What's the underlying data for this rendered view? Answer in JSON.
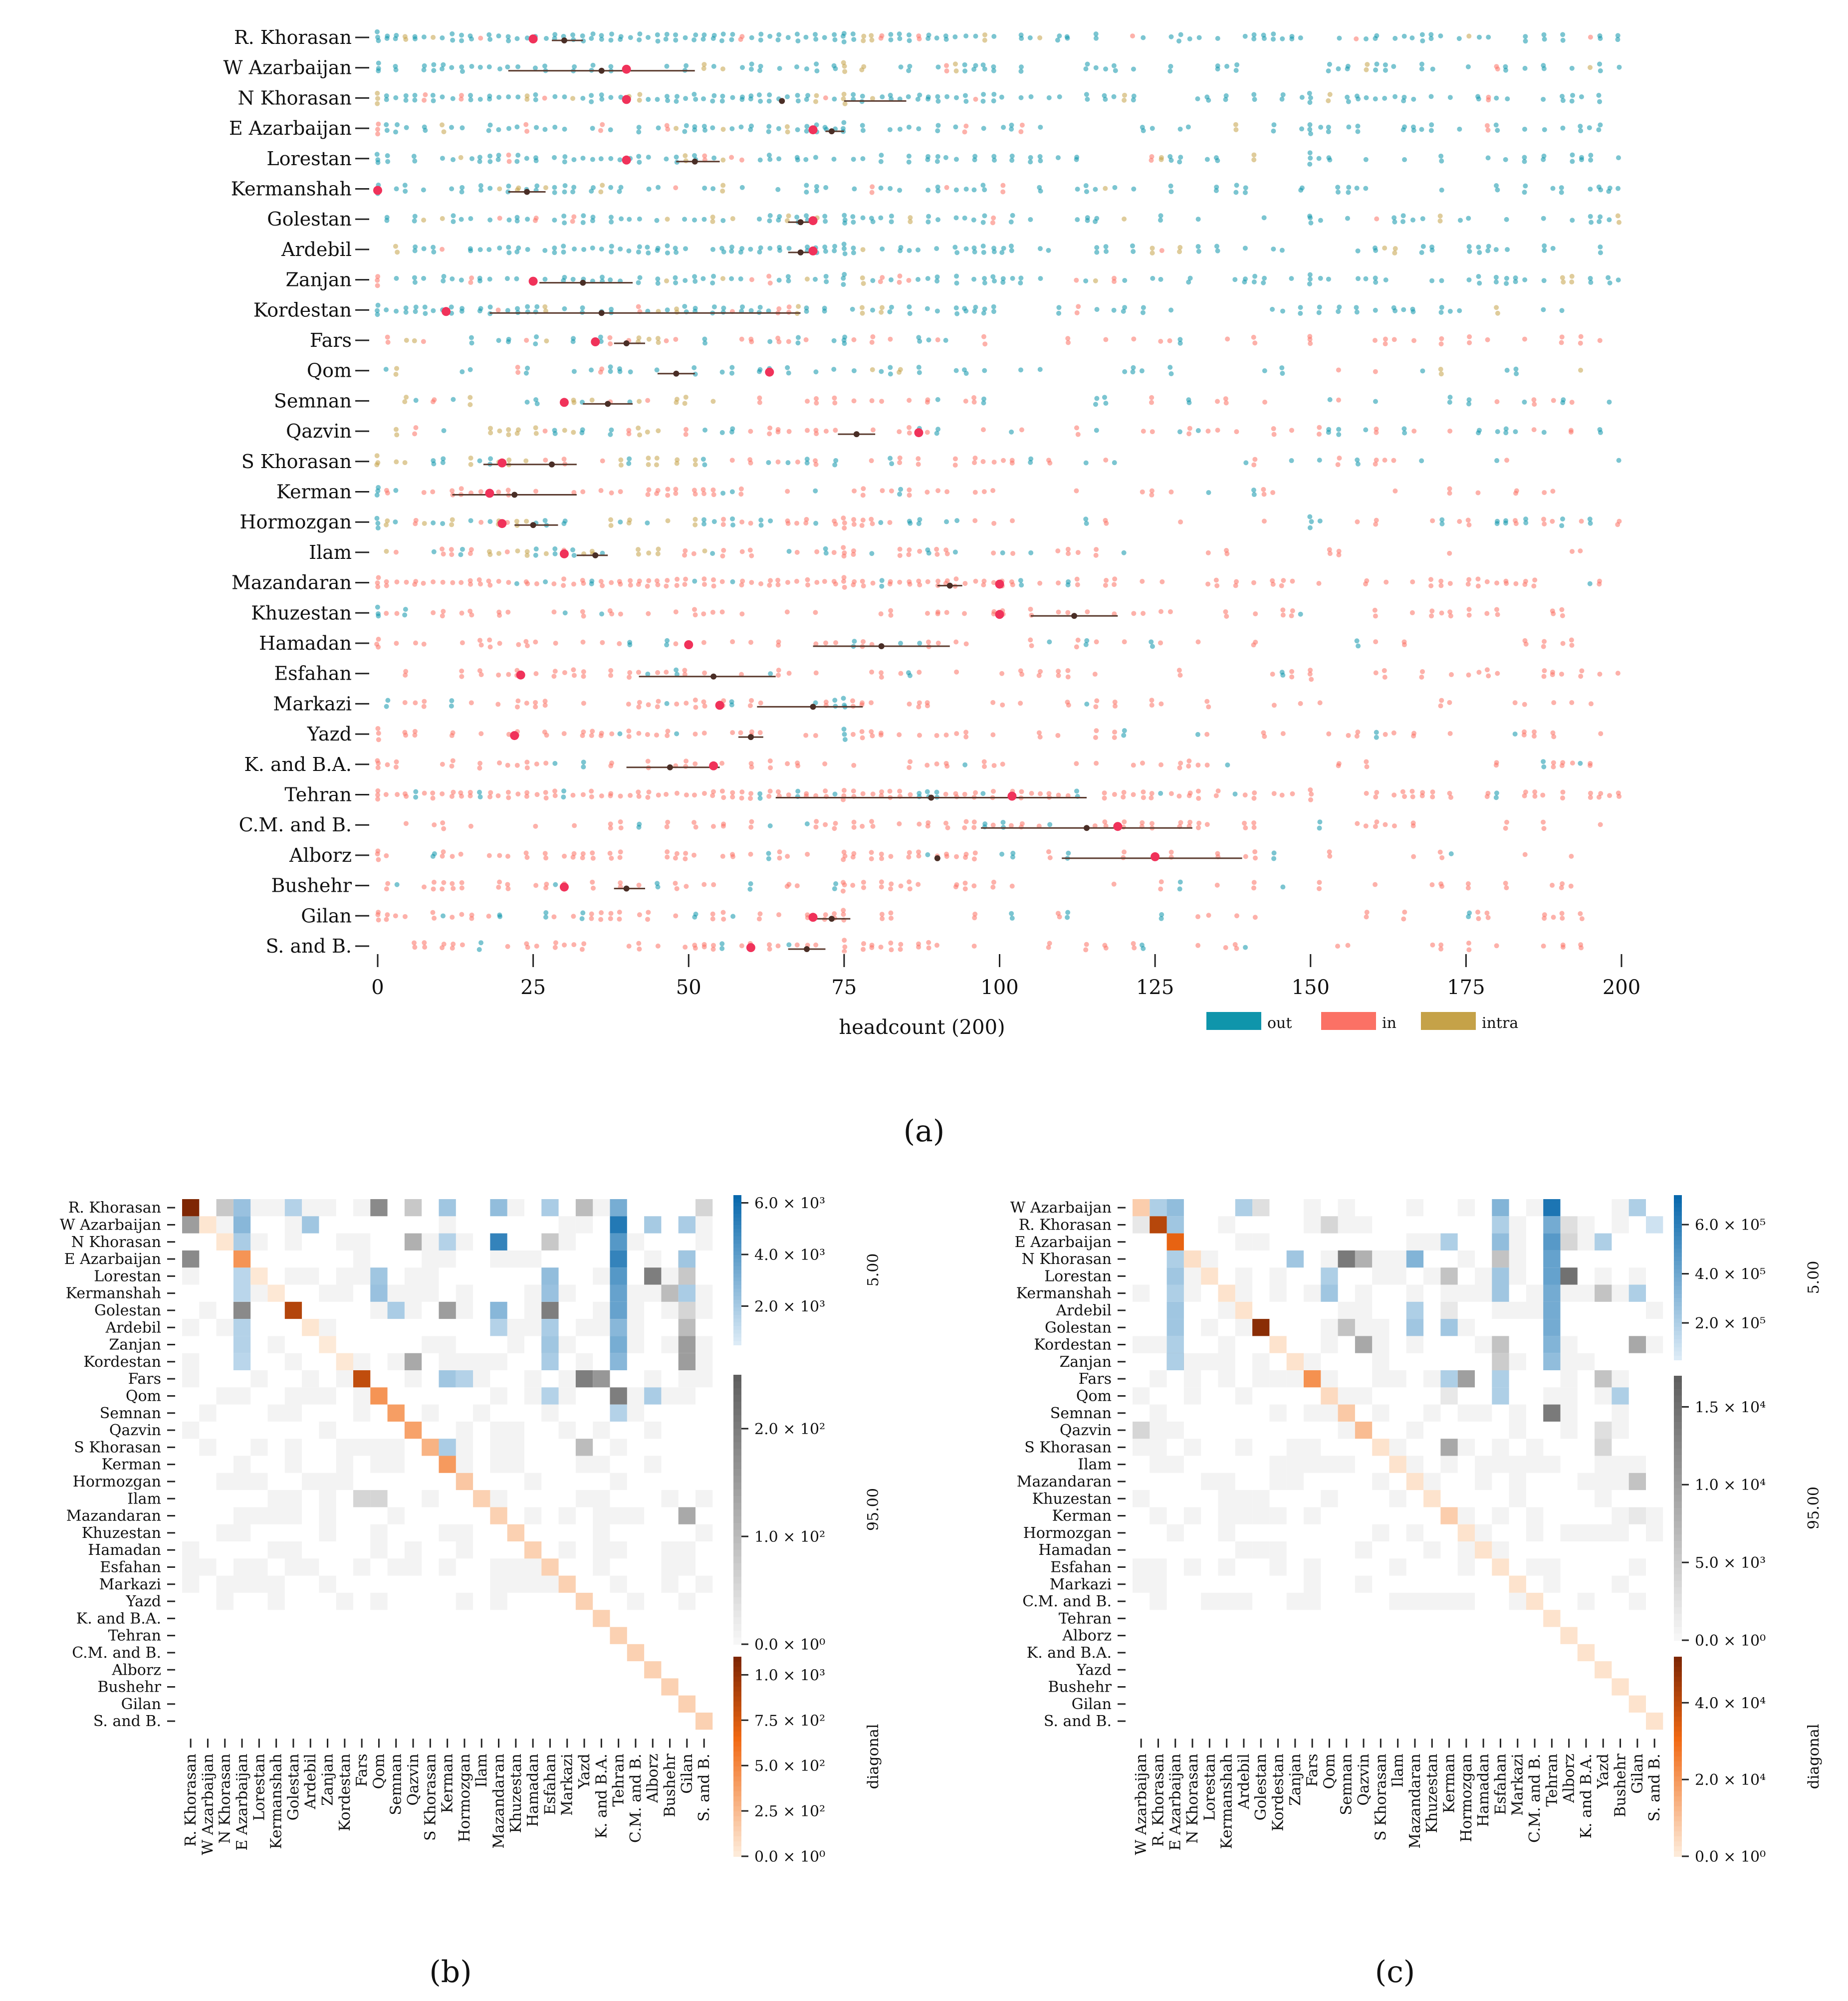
{
  "chart_data": [
    {
      "id": "a",
      "type": "scatter",
      "caption": "(a)",
      "xlabel": "headcount (200)",
      "ylabel": "",
      "xlim": [
        0,
        200
      ],
      "xticks": [
        "0",
        "25",
        "50",
        "75",
        "100",
        "125",
        "150",
        "175",
        "200"
      ],
      "legend": {
        "placement": "bottom-right",
        "entries": [
          {
            "label": "out",
            "color": "#0f95ab"
          },
          {
            "label": "in",
            "color": "#fb7165"
          },
          {
            "label": "intra",
            "color": "#c5a248"
          }
        ]
      },
      "provinces": [
        "R. Khorasan",
        "W Azarbaijan",
        "N Khorasan",
        "E Azarbaijan",
        "Lorestan",
        "Kermanshah",
        "Golestan",
        "Ardebil",
        "Zanjan",
        "Kordestan",
        "Fars",
        "Qom",
        "Semnan",
        "Qazvin",
        "S Khorasan",
        "Kerman",
        "Hormozgan",
        "Ilam",
        "Mazandaran",
        "Khuzestan",
        "Hamadan",
        "Esfahan",
        "Markazi",
        "Yazd",
        "K. and B.A.",
        "Tehran",
        "C.M. and B.",
        "Alborz",
        "Bushehr",
        "Gilan",
        "S. and B."
      ],
      "dominant_flow": [
        "out",
        "out",
        "out",
        "out",
        "out",
        "out",
        "out",
        "out",
        "out",
        "out",
        "mix",
        "out",
        "mix",
        "mix",
        "mix",
        "in",
        "mix",
        "mix",
        "in",
        "in",
        "in",
        "in",
        "in",
        "in",
        "in",
        "in",
        "in",
        "in",
        "in",
        "in",
        "in"
      ],
      "marker_values": [
        25,
        40,
        40,
        70,
        40,
        0,
        70,
        70,
        25,
        11,
        35,
        63,
        30,
        87,
        20,
        18,
        20,
        30,
        100,
        100,
        50,
        23,
        55,
        22,
        54,
        102,
        119,
        125,
        30,
        70,
        60
      ],
      "mean_values": [
        30,
        36,
        65,
        73,
        51,
        24,
        68,
        68,
        33,
        36,
        40,
        48,
        37,
        77,
        28,
        22,
        25,
        35,
        92,
        112,
        81,
        54,
        70,
        60,
        47,
        89,
        114,
        90,
        40,
        73,
        69
      ],
      "ci_ranges": [
        [
          28,
          33
        ],
        [
          21,
          51
        ],
        [
          75,
          85
        ],
        [
          72,
          75
        ],
        [
          48,
          55
        ],
        [
          21,
          27
        ],
        [
          66,
          70
        ],
        [
          66,
          70
        ],
        [
          26,
          41
        ],
        [
          18,
          68
        ],
        [
          38,
          43
        ],
        [
          45,
          51
        ],
        [
          33,
          41
        ],
        [
          74,
          80
        ],
        [
          17,
          32
        ],
        [
          12,
          32
        ],
        [
          22,
          29
        ],
        [
          32,
          37
        ],
        [
          90,
          94
        ],
        [
          105,
          119
        ],
        [
          70,
          92
        ],
        [
          42,
          64
        ],
        [
          61,
          78
        ],
        [
          58,
          62
        ],
        [
          40,
          55
        ],
        [
          64,
          114
        ],
        [
          97,
          131
        ],
        [
          110,
          139
        ],
        [
          38,
          43
        ],
        [
          70,
          76
        ],
        [
          66,
          72
        ]
      ]
    },
    {
      "id": "b",
      "type": "heatmap",
      "caption": "(b)",
      "rows": [
        "R. Khorasan",
        "W Azarbaijan",
        "N Khorasan",
        "E Azarbaijan",
        "Lorestan",
        "Kermanshah",
        "Golestan",
        "Ardebil",
        "Zanjan",
        "Kordestan",
        "Fars",
        "Qom",
        "Semnan",
        "Qazvin",
        "S Khorasan",
        "Kerman",
        "Hormozgan",
        "Ilam",
        "Mazandaran",
        "Khuzestan",
        "Hamadan",
        "Esfahan",
        "Markazi",
        "Yazd",
        "K. and B.A.",
        "Tehran",
        "C.M. and B.",
        "Alborz",
        "Bushehr",
        "Gilan",
        "S. and B."
      ],
      "columns": [
        "R. Khorasan",
        "W Azarbaijan",
        "N Khorasan",
        "E Azarbaijan",
        "Lorestan",
        "Kermanshah",
        "Golestan",
        "Ardebil",
        "Zanjan",
        "Kordestan",
        "Fars",
        "Qom",
        "Semnan",
        "Qazvin",
        "S Khorasan",
        "Kerman",
        "Hormozgan",
        "Ilam",
        "Mazandaran",
        "Khuzestan",
        "Hamadan",
        "Esfahan",
        "Markazi",
        "Yazd",
        "K. and B.A.",
        "Tehran",
        "C.M. and B.",
        "Alborz",
        "Bushehr",
        "Gilan",
        "S. and B."
      ],
      "colorbars": [
        {
          "label": "5.00",
          "cmap": "blue",
          "ticks": [
            "6.0 × 10³",
            "4.0 × 10³",
            "2.0 × 10³"
          ],
          "tick_values": [
            6000,
            4000,
            2000
          ],
          "range": [
            500,
            6300
          ]
        },
        {
          "label": "95.00",
          "cmap": "gray",
          "ticks": [
            "2.0 × 10²",
            "1.0 × 10²",
            "0.0 × 10⁰"
          ],
          "tick_values": [
            200,
            100,
            0
          ],
          "range": [
            0,
            250
          ]
        },
        {
          "label": "diagonal",
          "cmap": "orange",
          "ticks": [
            "1.0 × 10³",
            "7.5 × 10²",
            "5.0 × 10²",
            "2.5 × 10²",
            "0.0 × 10⁰"
          ],
          "tick_values": [
            1000,
            750,
            500,
            250,
            0
          ],
          "range": [
            0,
            1100
          ]
        }
      ],
      "diagonal": [
        1100,
        50,
        50,
        450,
        40,
        40,
        900,
        50,
        30,
        40,
        850,
        450,
        400,
        380,
        300,
        420,
        200,
        150,
        150,
        150,
        150,
        150,
        150,
        150,
        150,
        150,
        150,
        150,
        150,
        150,
        150
      ],
      "cells_high": [
        [
          0,
          3,
          2000
        ],
        [
          0,
          6,
          1200
        ],
        [
          0,
          15,
          1800
        ],
        [
          0,
          18,
          2200
        ],
        [
          0,
          21,
          1500
        ],
        [
          0,
          25,
          3000
        ],
        [
          1,
          3,
          2500
        ],
        [
          1,
          7,
          1800
        ],
        [
          1,
          25,
          5500
        ],
        [
          1,
          27,
          1600
        ],
        [
          1,
          29,
          1500
        ],
        [
          2,
          3,
          1500
        ],
        [
          2,
          15,
          1200
        ],
        [
          2,
          18,
          5000
        ],
        [
          2,
          25,
          4000
        ],
        [
          3,
          25,
          5000
        ],
        [
          3,
          29,
          1800
        ],
        [
          4,
          3,
          1000
        ],
        [
          4,
          11,
          1800
        ],
        [
          4,
          21,
          2200
        ],
        [
          4,
          25,
          4000
        ],
        [
          5,
          3,
          1000
        ],
        [
          5,
          11,
          2000
        ],
        [
          5,
          21,
          2000
        ],
        [
          5,
          25,
          3500
        ],
        [
          5,
          29,
          1500
        ],
        [
          6,
          12,
          1500
        ],
        [
          6,
          18,
          2500
        ],
        [
          6,
          25,
          3500
        ],
        [
          7,
          3,
          1200
        ],
        [
          7,
          18,
          1200
        ],
        [
          7,
          21,
          1500
        ],
        [
          7,
          25,
          2500
        ],
        [
          8,
          3,
          1200
        ],
        [
          8,
          21,
          1800
        ],
        [
          8,
          25,
          3000
        ],
        [
          9,
          3,
          1000
        ],
        [
          9,
          21,
          1500
        ],
        [
          9,
          25,
          2500
        ],
        [
          10,
          15,
          1800
        ],
        [
          10,
          16,
          1200
        ],
        [
          11,
          21,
          1200
        ],
        [
          11,
          27,
          1500
        ],
        [
          12,
          25,
          1200
        ],
        [
          14,
          15,
          1500
        ]
      ],
      "cells_mid": [
        [
          0,
          2,
          80
        ],
        [
          0,
          11,
          180
        ],
        [
          0,
          13,
          80
        ],
        [
          0,
          23,
          100
        ],
        [
          0,
          30,
          60
        ],
        [
          1,
          0,
          150
        ],
        [
          2,
          13,
          120
        ],
        [
          2,
          21,
          80
        ],
        [
          3,
          0,
          180
        ],
        [
          3,
          29,
          200
        ],
        [
          4,
          27,
          200
        ],
        [
          4,
          29,
          80
        ],
        [
          5,
          28,
          100
        ],
        [
          6,
          3,
          180
        ],
        [
          6,
          15,
          150
        ],
        [
          6,
          21,
          200
        ],
        [
          6,
          29,
          60
        ],
        [
          7,
          29,
          100
        ],
        [
          8,
          21,
          100
        ],
        [
          8,
          29,
          150
        ],
        [
          9,
          13,
          130
        ],
        [
          9,
          29,
          150
        ],
        [
          10,
          23,
          200
        ],
        [
          10,
          24,
          160
        ],
        [
          11,
          25,
          200
        ],
        [
          14,
          23,
          100
        ],
        [
          17,
          10,
          60
        ],
        [
          17,
          11,
          60
        ],
        [
          18,
          29,
          130
        ]
      ]
    },
    {
      "id": "c",
      "type": "heatmap",
      "caption": "(c)",
      "rows": [
        "W Azarbaijan",
        "R. Khorasan",
        "E Azarbaijan",
        "N Khorasan",
        "Lorestan",
        "Kermanshah",
        "Ardebil",
        "Golestan",
        "Kordestan",
        "Zanjan",
        "Fars",
        "Qom",
        "Semnan",
        "Qazvin",
        "S Khorasan",
        "Ilam",
        "Mazandaran",
        "Khuzestan",
        "Kerman",
        "Hormozgan",
        "Hamadan",
        "Esfahan",
        "Markazi",
        "C.M. and B.",
        "Tehran",
        "Alborz",
        "K. and B.A.",
        "Yazd",
        "Bushehr",
        "Gilan",
        "S. and B."
      ],
      "columns": [
        "W Azarbaijan",
        "R. Khorasan",
        "E Azarbaijan",
        "N Khorasan",
        "Lorestan",
        "Kermanshah",
        "Ardebil",
        "Golestan",
        "Kordestan",
        "Zanjan",
        "Fars",
        "Qom",
        "Semnan",
        "Qazvin",
        "S Khorasan",
        "Ilam",
        "Mazandaran",
        "Khuzestan",
        "Kerman",
        "Hormozgan",
        "Hamadan",
        "Esfahan",
        "Markazi",
        "C.M. and B.",
        "Tehran",
        "Alborz",
        "K. and B.A.",
        "Yazd",
        "Bushehr",
        "Gilan",
        "S. and B."
      ],
      "colorbars": [
        {
          "label": "5.00",
          "cmap": "blue",
          "ticks": [
            "6.0 × 10⁵",
            "4.0 × 10⁵",
            "2.0 × 10⁵"
          ],
          "tick_values": [
            600000,
            400000,
            200000
          ],
          "range": [
            50000,
            720000
          ]
        },
        {
          "label": "95.00",
          "cmap": "gray",
          "ticks": [
            "1.5 × 10⁴",
            "1.0 × 10⁴",
            "5.0 × 10³",
            "0.0 × 10⁰"
          ],
          "tick_values": [
            15000,
            10000,
            5000,
            0
          ],
          "range": [
            0,
            17000
          ]
        },
        {
          "label": "diagonal",
          "cmap": "orange",
          "ticks": [
            "4.0 × 10⁴",
            "2.0 × 10⁴",
            "0.0 × 10⁰"
          ],
          "tick_values": [
            40000,
            20000,
            0
          ],
          "range": [
            0,
            52000
          ]
        }
      ],
      "diagonal": [
        8000,
        42000,
        33000,
        4000,
        3000,
        3000,
        3000,
        50000,
        3000,
        3000,
        22000,
        5000,
        9000,
        12000,
        3000,
        3000,
        3000,
        3000,
        8000,
        3000,
        3000,
        3000,
        3000,
        3000,
        3000,
        3000,
        3000,
        3000,
        3000,
        3000,
        3000
      ],
      "cells_high": [
        [
          0,
          1,
          150000
        ],
        [
          0,
          2,
          250000
        ],
        [
          0,
          6,
          150000
        ],
        [
          0,
          21,
          300000
        ],
        [
          0,
          24,
          650000
        ],
        [
          0,
          29,
          150000
        ],
        [
          1,
          2,
          200000
        ],
        [
          1,
          21,
          150000
        ],
        [
          1,
          24,
          350000
        ],
        [
          1,
          30,
          40000
        ],
        [
          2,
          18,
          150000
        ],
        [
          2,
          21,
          250000
        ],
        [
          2,
          24,
          450000
        ],
        [
          2,
          27,
          150000
        ],
        [
          3,
          2,
          150000
        ],
        [
          3,
          9,
          200000
        ],
        [
          3,
          16,
          300000
        ],
        [
          3,
          24,
          400000
        ],
        [
          4,
          2,
          200000
        ],
        [
          4,
          11,
          150000
        ],
        [
          4,
          21,
          200000
        ],
        [
          4,
          24,
          400000
        ],
        [
          5,
          2,
          150000
        ],
        [
          5,
          11,
          200000
        ],
        [
          5,
          21,
          200000
        ],
        [
          5,
          24,
          350000
        ],
        [
          5,
          29,
          150000
        ],
        [
          6,
          2,
          200000
        ],
        [
          6,
          16,
          150000
        ],
        [
          6,
          24,
          350000
        ],
        [
          7,
          2,
          200000
        ],
        [
          7,
          16,
          200000
        ],
        [
          7,
          18,
          200000
        ],
        [
          7,
          24,
          350000
        ],
        [
          8,
          2,
          150000
        ],
        [
          8,
          24,
          300000
        ],
        [
          9,
          2,
          150000
        ],
        [
          9,
          24,
          250000
        ],
        [
          10,
          18,
          150000
        ],
        [
          10,
          21,
          150000
        ],
        [
          11,
          21,
          150000
        ],
        [
          11,
          28,
          150000
        ]
      ],
      "cells_mid": [
        [
          0,
          7,
          3000
        ],
        [
          1,
          0,
          2000
        ],
        [
          1,
          11,
          4000
        ],
        [
          1,
          25,
          3000
        ],
        [
          2,
          25,
          4000
        ],
        [
          3,
          12,
          14000
        ],
        [
          3,
          13,
          8000
        ],
        [
          3,
          21,
          6000
        ],
        [
          4,
          18,
          6000
        ],
        [
          4,
          25,
          15000
        ],
        [
          5,
          27,
          6000
        ],
        [
          6,
          18,
          2000
        ],
        [
          6,
          24,
          5000
        ],
        [
          7,
          12,
          6000
        ],
        [
          8,
          13,
          9000
        ],
        [
          8,
          21,
          6000
        ],
        [
          8,
          29,
          9000
        ],
        [
          9,
          2,
          17000
        ],
        [
          9,
          21,
          5000
        ],
        [
          10,
          19,
          10000
        ],
        [
          10,
          27,
          6000
        ],
        [
          11,
          18,
          2000
        ],
        [
          12,
          24,
          14000
        ],
        [
          13,
          0,
          4000
        ],
        [
          13,
          27,
          3000
        ],
        [
          14,
          18,
          9000
        ],
        [
          14,
          27,
          4000
        ],
        [
          16,
          29,
          6000
        ],
        [
          18,
          29,
          2000
        ]
      ]
    }
  ]
}
